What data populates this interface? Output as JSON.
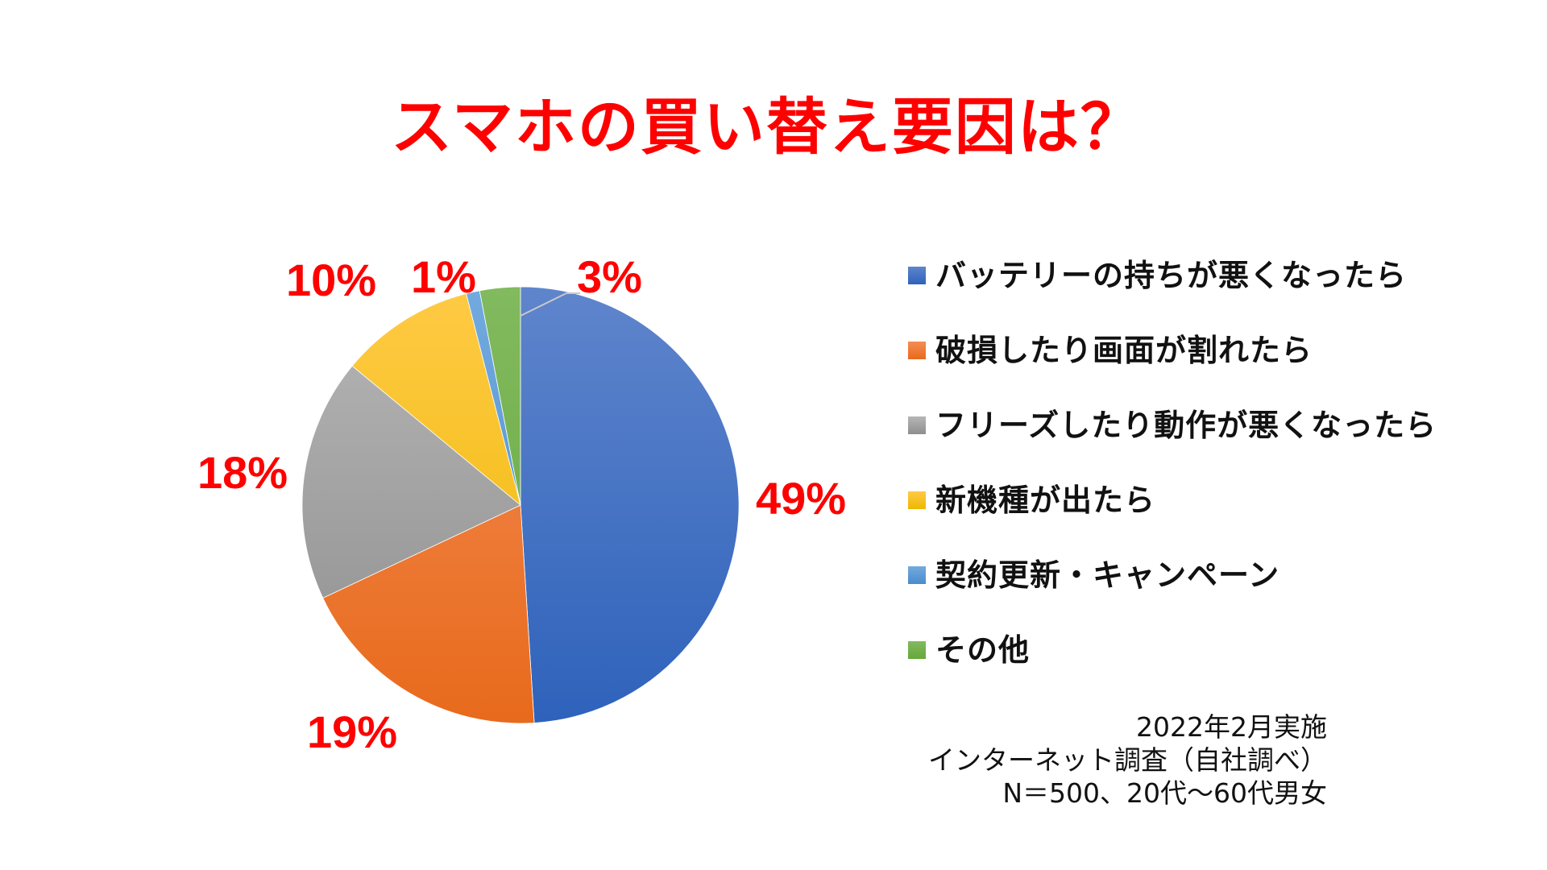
{
  "title": "スマホの買い替え要因は？",
  "colors": {
    "title": "#ff0000",
    "data_label": "#ff0000",
    "leader_line": "#c8c8c8"
  },
  "chart_data": {
    "type": "pie",
    "title": "スマホの買い替え要因は？",
    "start_angle_deg": 0,
    "direction": "clockwise",
    "legend_position": "right",
    "categories": [
      "バッテリーの持ちが悪くなったら",
      "破損したり画面が割れたら",
      "フリーズしたり動作が悪くなったら",
      "新機種が出たら",
      "契約更新・キャンペーン",
      "その他"
    ],
    "values": [
      49,
      19,
      18,
      10,
      1,
      3
    ],
    "unit": "%",
    "labels": [
      "49%",
      "19%",
      "18%",
      "10%",
      "1%",
      "3%"
    ],
    "colors": [
      "#4472c4",
      "#ed7d31",
      "#a5a5a5",
      "#ffc000",
      "#5b9bd5",
      "#70ad47"
    ],
    "gradient_top": [
      "#5f85cc",
      "#f38d55",
      "#b6b6b6",
      "#ffca45",
      "#72aade",
      "#82ba5f"
    ],
    "gradient_bottom": [
      "#2e62bb",
      "#e86a1c",
      "#8e8e8e",
      "#edb800",
      "#4a8ccc",
      "#65a83b"
    ]
  },
  "legend": {
    "items": [
      {
        "label": "バッテリーの持ちが悪くなったら",
        "color": "#4472c4"
      },
      {
        "label": "破損したり画面が割れたら",
        "color": "#ed7d31"
      },
      {
        "label": "フリーズしたり動作が悪くなったら",
        "color": "#a5a5a5"
      },
      {
        "label": "新機種が出たら",
        "color": "#ffc000"
      },
      {
        "label": "契約更新・キャンペーン",
        "color": "#5b9bd5"
      },
      {
        "label": "その他",
        "color": "#70ad47"
      }
    ]
  },
  "footnote": {
    "line1": "2022年2月実施",
    "line2": "インターネット調査（自社調べ）",
    "line3": "N＝500、20代～60代男女"
  }
}
